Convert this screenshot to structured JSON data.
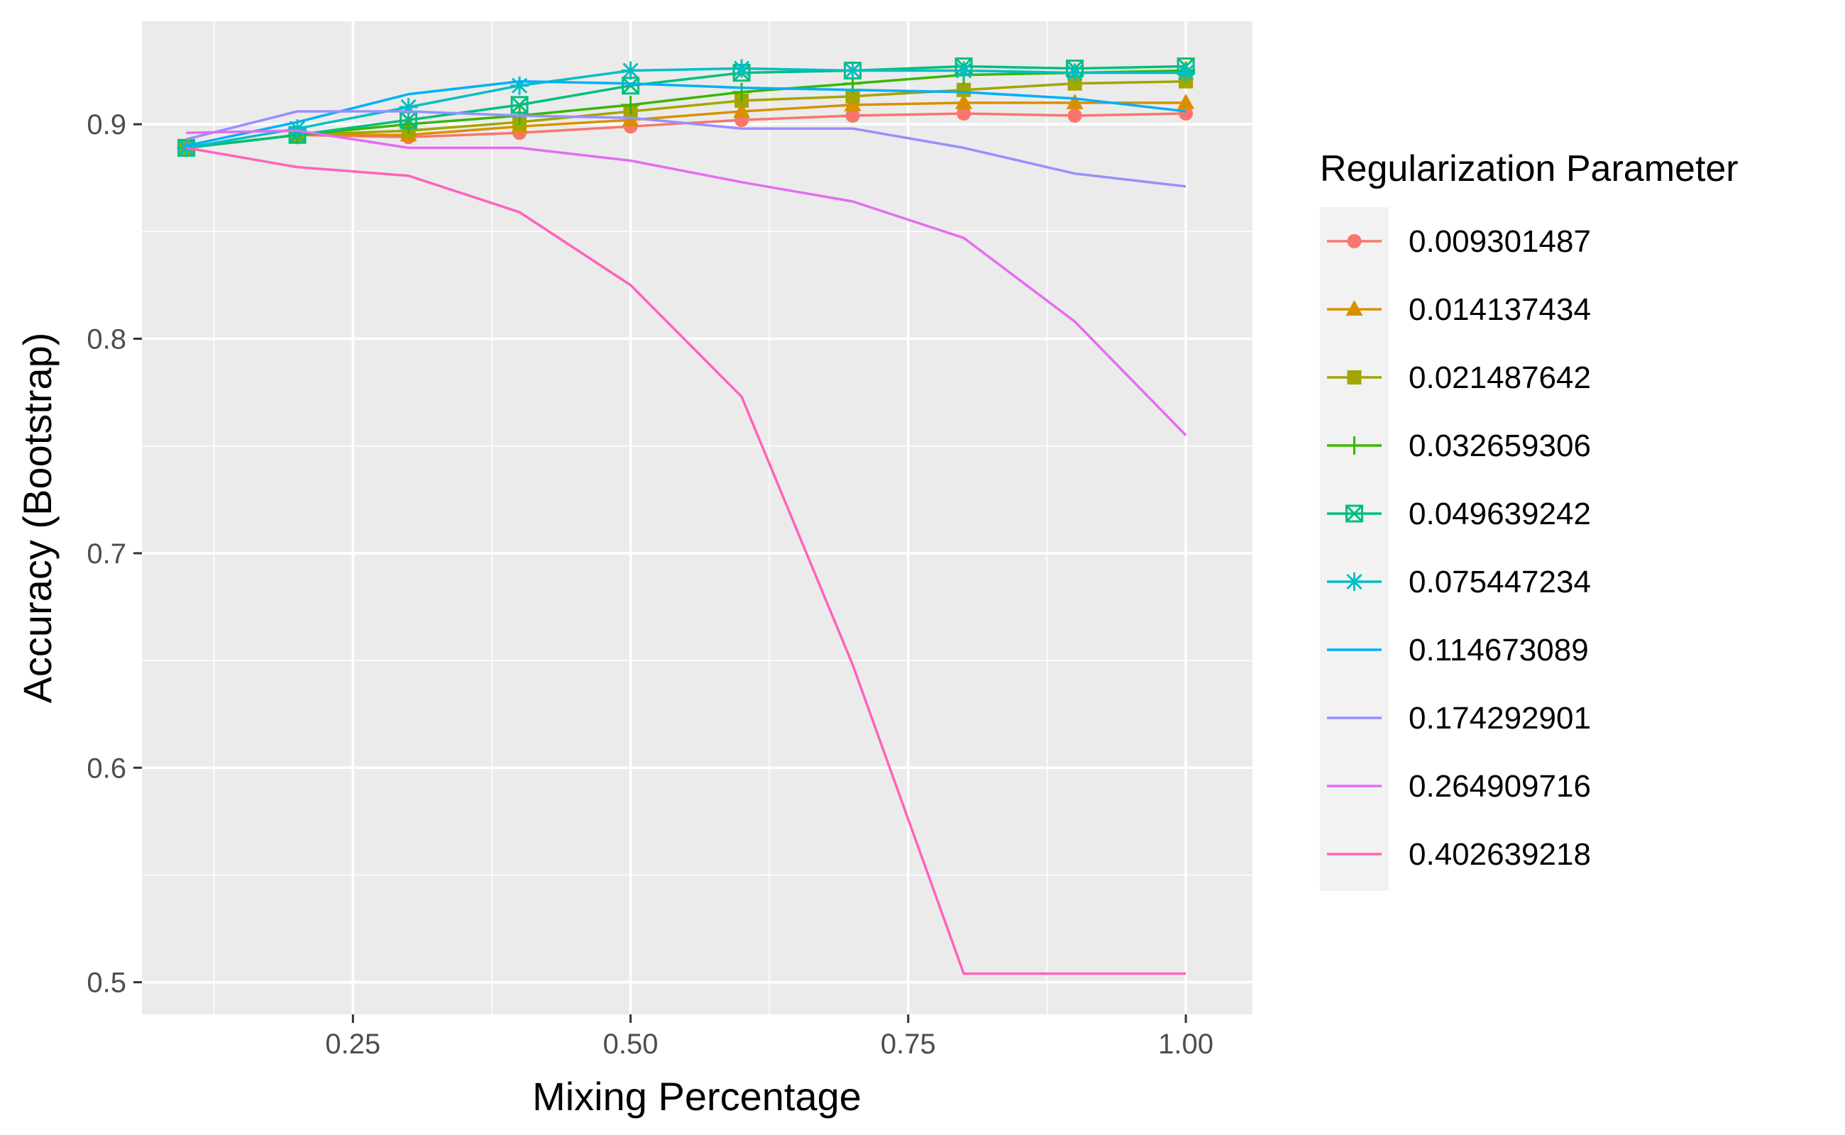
{
  "chart_data": {
    "type": "line",
    "title": "",
    "xlabel": "Mixing Percentage",
    "ylabel": "Accuracy (Bootstrap)",
    "xlim": [
      0.06,
      1.06
    ],
    "ylim": [
      0.485,
      0.948
    ],
    "x_ticks": [
      0.25,
      0.5,
      0.75,
      1.0
    ],
    "x_tick_labels": [
      "0.25",
      "0.50",
      "0.75",
      "1.00"
    ],
    "y_ticks": [
      0.5,
      0.6,
      0.7,
      0.8,
      0.9
    ],
    "y_tick_labels": [
      "0.5",
      "0.6",
      "0.7",
      "0.8",
      "0.9"
    ],
    "grid": true,
    "background": "#ebebeb",
    "legend_title": "Regularization Parameter",
    "legend_position": "right",
    "x": [
      0.1,
      0.2,
      0.3,
      0.4,
      0.5,
      0.6,
      0.7,
      0.8,
      0.9,
      1.0
    ],
    "series": [
      {
        "name": "0.009301487",
        "color": "#F8766D",
        "marker": "circle",
        "values": [
          0.889,
          0.895,
          0.894,
          0.896,
          0.899,
          0.902,
          0.904,
          0.905,
          0.904,
          0.905
        ]
      },
      {
        "name": "0.014137434",
        "color": "#D89000",
        "marker": "triangle",
        "values": [
          0.889,
          0.895,
          0.895,
          0.899,
          0.902,
          0.906,
          0.909,
          0.91,
          0.91,
          0.91
        ]
      },
      {
        "name": "0.021487642",
        "color": "#A3A500",
        "marker": "square",
        "values": [
          0.889,
          0.895,
          0.897,
          0.901,
          0.906,
          0.911,
          0.913,
          0.916,
          0.919,
          0.92
        ]
      },
      {
        "name": "0.032659306",
        "color": "#39B600",
        "marker": "plus",
        "values": [
          0.889,
          0.895,
          0.9,
          0.904,
          0.909,
          0.915,
          0.919,
          0.923,
          0.924,
          0.925
        ]
      },
      {
        "name": "0.049639242",
        "color": "#00BF7D",
        "marker": "square-x",
        "values": [
          0.889,
          0.895,
          0.902,
          0.909,
          0.918,
          0.924,
          0.925,
          0.927,
          0.926,
          0.927
        ]
      },
      {
        "name": "0.075447234",
        "color": "#00BFC4",
        "marker": "asterisk",
        "values": [
          0.889,
          0.898,
          0.908,
          0.918,
          0.925,
          0.926,
          0.925,
          0.925,
          0.924,
          0.924
        ]
      },
      {
        "name": "0.114673089",
        "color": "#00B0F6",
        "marker": "none",
        "values": [
          0.89,
          0.901,
          0.914,
          0.92,
          0.919,
          0.917,
          0.916,
          0.915,
          0.912,
          0.906
        ]
      },
      {
        "name": "0.174292901",
        "color": "#9590FF",
        "marker": "none",
        "values": [
          0.893,
          0.906,
          0.906,
          0.904,
          0.903,
          0.898,
          0.898,
          0.889,
          0.877,
          0.871
        ]
      },
      {
        "name": "0.264909716",
        "color": "#E76BF3",
        "marker": "none",
        "values": [
          0.896,
          0.897,
          0.889,
          0.889,
          0.883,
          0.873,
          0.864,
          0.847,
          0.808,
          0.755
        ]
      },
      {
        "name": "0.402639218",
        "color": "#FF62BC",
        "marker": "none",
        "values": [
          0.889,
          0.88,
          0.876,
          0.859,
          0.825,
          0.773,
          0.648,
          0.504,
          0.504,
          0.504
        ]
      }
    ]
  }
}
